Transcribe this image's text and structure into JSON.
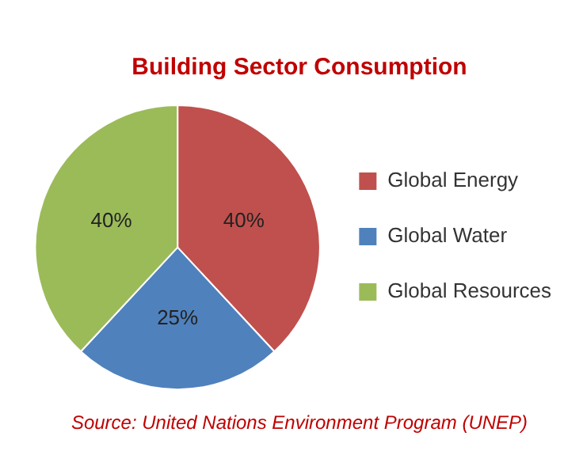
{
  "chart_data": {
    "type": "pie",
    "title": "Building Sector Consumption",
    "categories": [
      "Global Energy",
      "Global Water",
      "Global Resources"
    ],
    "values": [
      40,
      25,
      40
    ],
    "value_labels": [
      "40%",
      "25%",
      "40%"
    ],
    "colors": [
      "#c0504d",
      "#4f81bd",
      "#9bbb59"
    ],
    "legend": "right",
    "annotations": [
      "Source: United Nations Environment Program (UNEP)"
    ]
  }
}
